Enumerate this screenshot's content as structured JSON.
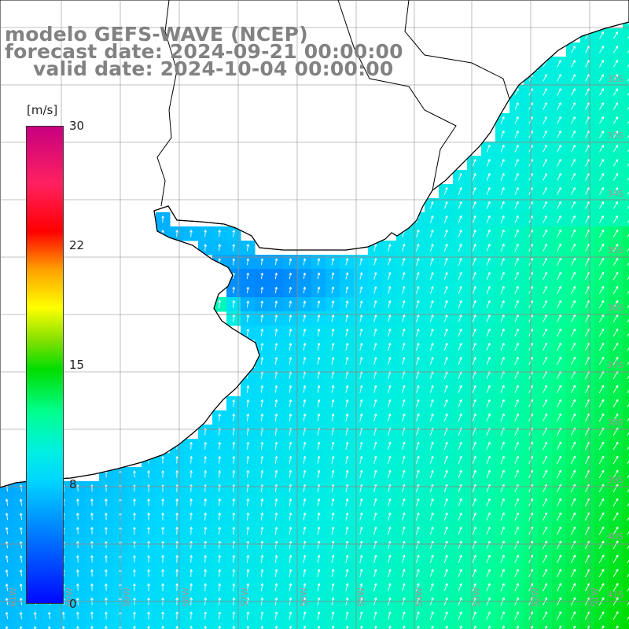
{
  "title": {
    "line1": "modelo GEFS-WAVE (NCEP)",
    "line2": "forecast date: 2024-09-21 00:00:00",
    "line3": "valid date: 2024-10-04 00:00:00"
  },
  "colorbar": {
    "unit": "[m/s]",
    "ticks": [
      {
        "label": "30",
        "value": 30
      },
      {
        "label": "22",
        "value": 22
      },
      {
        "label": "15",
        "value": 15
      },
      {
        "label": "8",
        "value": 8
      },
      {
        "label": "0",
        "value": 0
      }
    ],
    "min": 0,
    "max": 30
  },
  "map": {
    "variable": "wind speed and direction",
    "lat_labels": [
      "32S",
      "33S",
      "34S",
      "35S",
      "36S",
      "37S",
      "38S",
      "39S",
      "40S",
      "41S"
    ],
    "lon_labels": [
      "61W",
      "60W",
      "59W",
      "58W",
      "57W",
      "56W",
      "55W",
      "54W",
      "53W",
      "52W",
      "51W"
    ],
    "extent": {
      "lon_min": -62.0,
      "lon_max": -51.0,
      "lat_min": -41.6,
      "lat_max": -30.8
    }
  },
  "colors": {
    "land": "#ffffff",
    "coast": "#000000",
    "grid": "#8c8c8c",
    "arrow": "#ffffff",
    "title": "#828282"
  }
}
